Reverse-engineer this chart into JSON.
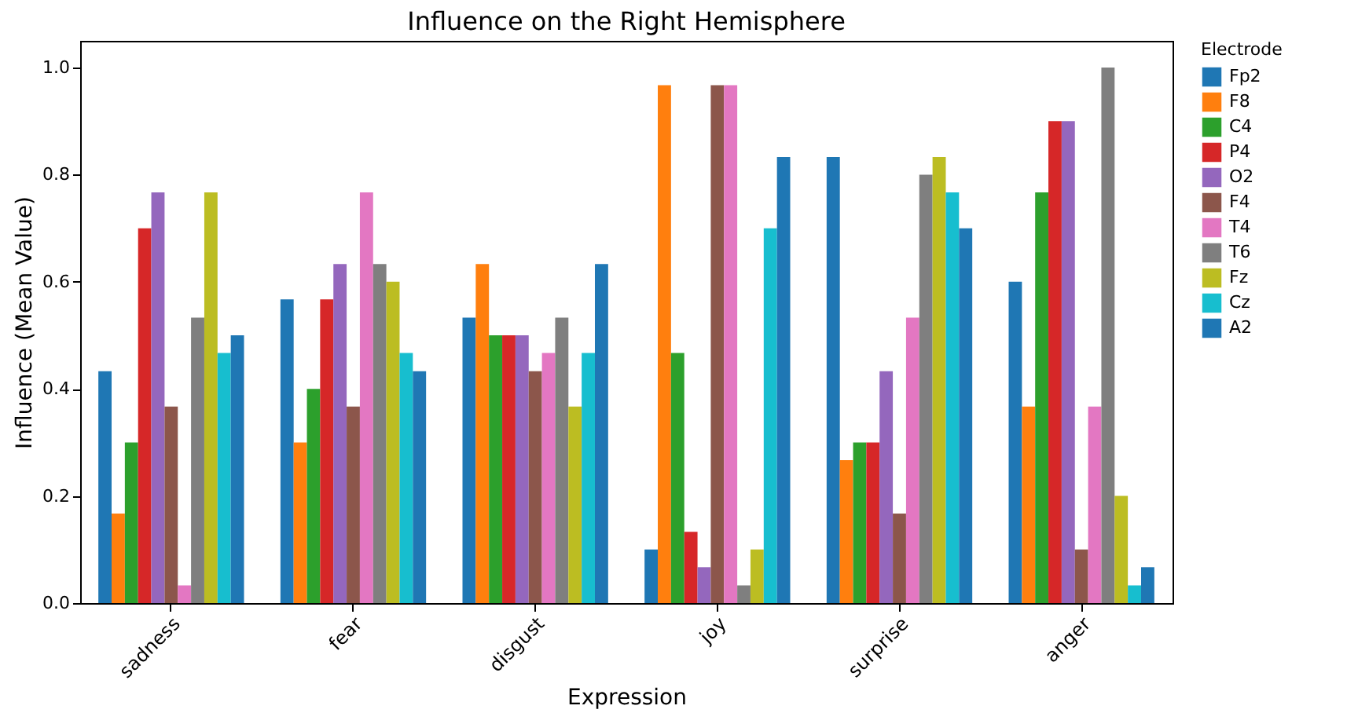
{
  "chart_data": {
    "type": "bar",
    "title": "Influence on the Right Hemisphere",
    "xlabel": "Expression",
    "ylabel": "Influence (Mean Value)",
    "legend_title": "Electrode",
    "legend": "right",
    "grid": false,
    "categories": [
      "sadness",
      "fear",
      "disgust",
      "joy",
      "surprise",
      "anger"
    ],
    "ylim": [
      0,
      1.05
    ],
    "yticks": [
      {
        "value": 0,
        "label": "0.0"
      },
      0.2,
      0.4,
      0.6,
      0.8,
      {
        "value": 1,
        "label": "1.0"
      }
    ],
    "series": [
      {
        "name": "Fp2",
        "color": "#1f77b4",
        "values": [
          0.433,
          0.567,
          0.533,
          0.1,
          0.833,
          0.6
        ]
      },
      {
        "name": "F8",
        "color": "#ff7f0e",
        "values": [
          0.167,
          0.3,
          0.633,
          0.967,
          0.267,
          0.367
        ]
      },
      {
        "name": "C4",
        "color": "#2ca02c",
        "values": [
          0.3,
          0.4,
          0.5,
          0.467,
          0.3,
          0.767
        ]
      },
      {
        "name": "P4",
        "color": "#d62728",
        "values": [
          0.7,
          0.567,
          0.5,
          0.133,
          0.3,
          0.9
        ]
      },
      {
        "name": "O2",
        "color": "#9467bd",
        "values": [
          0.767,
          0.633,
          0.5,
          0.067,
          0.433,
          0.9
        ]
      },
      {
        "name": "F4",
        "color": "#8c564b",
        "values": [
          0.367,
          0.367,
          0.433,
          0.967,
          0.167,
          0.1
        ]
      },
      {
        "name": "T4",
        "color": "#e377c2",
        "values": [
          0.033,
          0.767,
          0.467,
          0.967,
          0.533,
          0.367
        ]
      },
      {
        "name": "T6",
        "color": "#7f7f7f",
        "values": [
          0.533,
          0.633,
          0.533,
          0.033,
          0.8,
          1.0
        ]
      },
      {
        "name": "Fz",
        "color": "#bcbd22",
        "values": [
          0.767,
          0.6,
          0.367,
          0.1,
          0.833,
          0.2
        ]
      },
      {
        "name": "Cz",
        "color": "#17becf",
        "values": [
          0.467,
          0.467,
          0.467,
          0.7,
          0.767,
          0.033
        ]
      },
      {
        "name": "A2",
        "color": "#1f77b4",
        "values": [
          0.5,
          0.433,
          0.633,
          0.833,
          0.7,
          0.067
        ]
      }
    ]
  }
}
